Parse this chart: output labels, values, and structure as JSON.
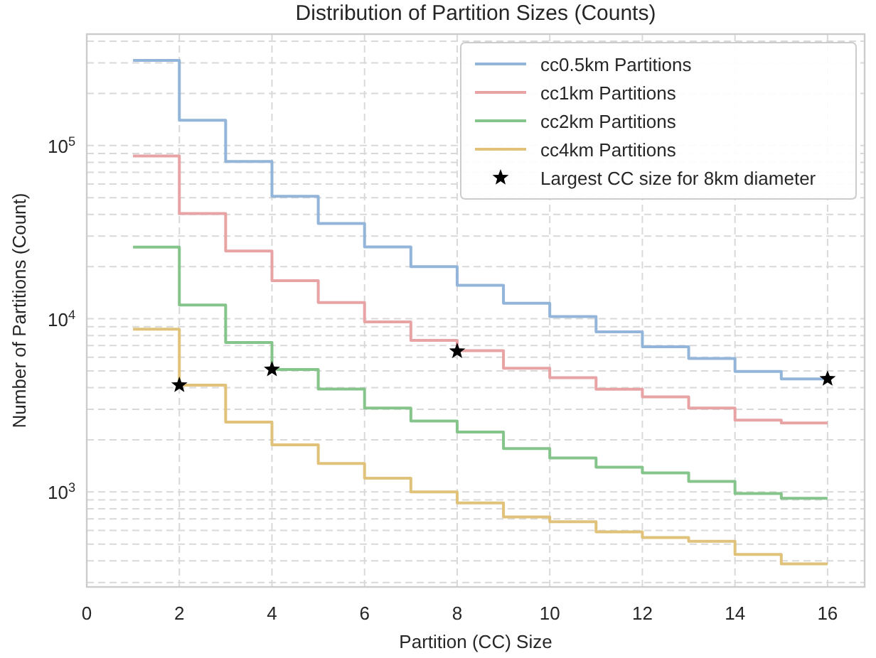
{
  "chart_data": {
    "type": "step",
    "title": "Distribution of Partition Sizes (Counts)",
    "xlabel": "Partition (CC) Size",
    "ylabel": "Number of Partitions (Count)",
    "x": [
      1,
      2,
      3,
      4,
      5,
      6,
      7,
      8,
      9,
      10,
      11,
      12,
      13,
      14,
      15,
      16
    ],
    "series": [
      {
        "name": "cc0.5km Partitions",
        "color": "#92b5d9",
        "values": [
          310000,
          140000,
          81000,
          51000,
          35500,
          26000,
          20000,
          15600,
          12300,
          10300,
          8400,
          6900,
          5900,
          4960,
          4500,
          4500
        ]
      },
      {
        "name": "cc1km Partitions",
        "color": "#e8a3a5",
        "values": [
          87000,
          40500,
          24600,
          16600,
          12400,
          9600,
          7500,
          6550,
          5180,
          4570,
          3920,
          3540,
          3050,
          2600,
          2500,
          2500
        ]
      },
      {
        "name": "cc2km Partitions",
        "color": "#85c48a",
        "values": [
          25900,
          12000,
          7300,
          5100,
          3930,
          3050,
          2570,
          2220,
          1780,
          1570,
          1390,
          1290,
          1150,
          980,
          920,
          920
        ]
      },
      {
        "name": "cc4km Partitions",
        "color": "#e0c27a",
        "values": [
          8700,
          4140,
          2530,
          1870,
          1460,
          1200,
          1000,
          865,
          718,
          673,
          588,
          546,
          519,
          436,
          385,
          385
        ]
      },
      {
        "name": "Largest CC size for 8km diameter",
        "type": "scatter",
        "marker": "star",
        "color": "#000000",
        "x": [
          2,
          4,
          8,
          16
        ],
        "values": [
          4140,
          5100,
          6500,
          4500
        ]
      }
    ],
    "xlim": [
      0,
      16.8
    ],
    "xticks": [
      0,
      2,
      4,
      6,
      8,
      10,
      12,
      14,
      16
    ],
    "ylim": [
      283,
      440000
    ],
    "log": true,
    "yticks": [
      {
        "value": 300,
        "label": null
      },
      {
        "value": 400,
        "label": null
      },
      {
        "value": 500,
        "label": null
      },
      {
        "value": 600,
        "label": null
      },
      {
        "value": 700,
        "label": null
      },
      {
        "value": 800,
        "label": null
      },
      {
        "value": 900,
        "label": null
      },
      {
        "value": 1000,
        "label": "10$^{3}$"
      },
      {
        "value": 2000,
        "label": null
      },
      {
        "value": 3000,
        "label": null
      },
      {
        "value": 4000,
        "label": null
      },
      {
        "value": 5000,
        "label": null
      },
      {
        "value": 6000,
        "label": null
      },
      {
        "value": 7000,
        "label": null
      },
      {
        "value": 8000,
        "label": null
      },
      {
        "value": 9000,
        "label": null
      },
      {
        "value": 10000,
        "label": "10$^{4}$"
      },
      {
        "value": 20000,
        "label": null
      },
      {
        "value": 30000,
        "label": null
      },
      {
        "value": 40000,
        "label": null
      },
      {
        "value": 50000,
        "label": null
      },
      {
        "value": 60000,
        "label": null
      },
      {
        "value": 70000,
        "label": null
      },
      {
        "value": 80000,
        "label": null
      },
      {
        "value": 90000,
        "label": null
      },
      {
        "value": 100000,
        "label": "10$^{5}$"
      },
      {
        "value": 200000,
        "label": null
      },
      {
        "value": 300000,
        "label": null
      },
      {
        "value": 400000,
        "label": null
      }
    ],
    "grid": true,
    "legend": "top right",
    "line_style": "solid"
  }
}
